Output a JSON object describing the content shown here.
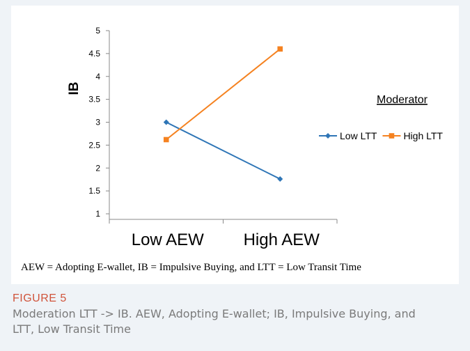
{
  "figure": {
    "footnote": "AEW = Adopting E-wallet, IB = Impulsive Buying, and LTT = Low Transit Time",
    "label": "FIGURE 5",
    "caption": "Moderation LTT -> IB. AEW, Adopting E-wallet; IB, Impulsive Buying, and LTT, Low Transit Time"
  },
  "chart_data": {
    "type": "line",
    "categories": [
      "Low AEW",
      "High AEW"
    ],
    "ylabel": "IB",
    "xlabel": "",
    "ylim": [
      1,
      5
    ],
    "yticks": [
      1,
      1.5,
      2,
      2.5,
      3,
      3.5,
      4,
      4.5,
      5
    ],
    "legend_title": "Moderator",
    "legend_position": "right",
    "grid": false,
    "series": [
      {
        "name": "Low LTT",
        "values": [
          3.0,
          1.76
        ],
        "color": "#2e75b6",
        "marker": "diamond"
      },
      {
        "name": "High LTT",
        "values": [
          2.62,
          4.6
        ],
        "color": "#f58220",
        "marker": "square"
      }
    ]
  }
}
